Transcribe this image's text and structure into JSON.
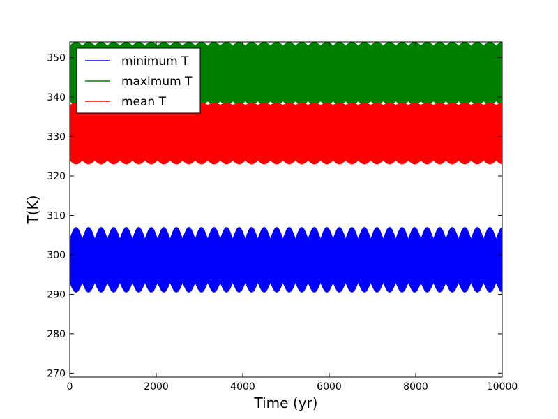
{
  "chart_data": {
    "type": "area",
    "title": "",
    "xlabel": "Time (yr)",
    "ylabel": "T(K)",
    "xlim": [
      0,
      10000
    ],
    "ylim": [
      269,
      354
    ],
    "x_ticks": [
      0,
      2000,
      4000,
      6000,
      8000,
      10000
    ],
    "y_ticks": [
      270,
      280,
      290,
      300,
      310,
      320,
      330,
      340,
      350
    ],
    "grid": false,
    "legend_position": "top-left",
    "oscillation_period_yr": 290,
    "series": [
      {
        "name": "minimum T",
        "color": "#0000ff",
        "band_low": 290.5,
        "band_high": 307,
        "band_low_upper_edge": 293,
        "band_high_lower_edge": 304,
        "description_values": "oscillates between ~291 and ~307"
      },
      {
        "name": "maximum T",
        "color": "#008000",
        "band_low": 338,
        "band_high": 354,
        "band_low_upper_edge": 339,
        "band_high_lower_edge": 353
      },
      {
        "name": "mean T",
        "color": "#ff0000",
        "band_low": 323,
        "band_high": 338.5,
        "band_low_upper_edge": 324,
        "band_high_lower_edge": 338
      }
    ]
  }
}
